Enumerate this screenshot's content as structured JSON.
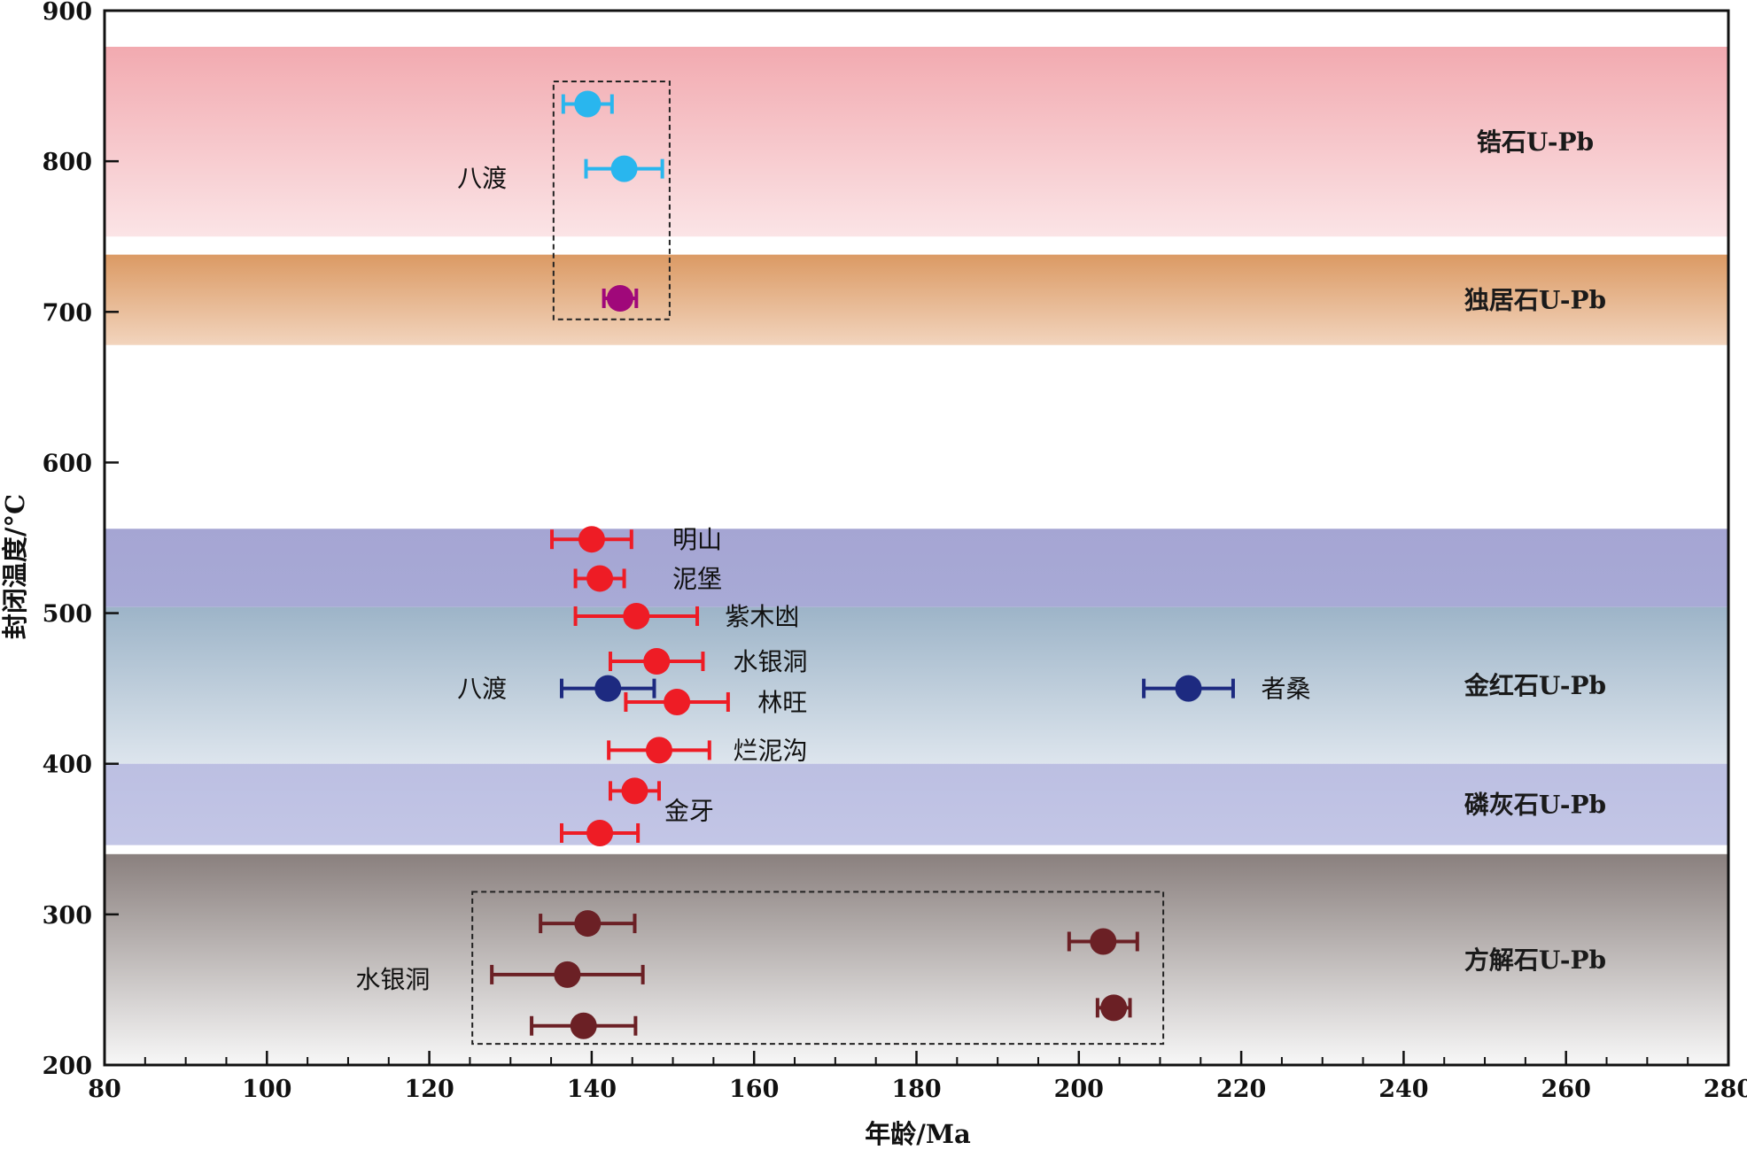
{
  "chart_data": {
    "type": "scatter",
    "title": "",
    "xlabel": "年龄/Ma",
    "ylabel": "封闭温度/°C",
    "xlim": [
      80,
      280
    ],
    "ylim": [
      200,
      900
    ],
    "x_ticks": [
      80,
      100,
      120,
      140,
      160,
      180,
      200,
      220,
      240,
      260,
      280
    ],
    "y_ticks": [
      200,
      300,
      400,
      500,
      600,
      700,
      800,
      900
    ],
    "grid": false,
    "bands": [
      {
        "label": "锆石U-Pb",
        "y_from": 750,
        "y_to": 876,
        "color_top": "#f2aab0",
        "color_bottom": "#fbe4e6"
      },
      {
        "label": "独居石U-Pb",
        "y_from": 678,
        "y_to": 738,
        "color_top": "#db9a64",
        "color_bottom": "#f2d4bd"
      },
      {
        "label": "",
        "y_from": 504,
        "y_to": 556,
        "color_top": "#a5a5d3",
        "color_bottom": "#a8aad6"
      },
      {
        "label": "金红石U-Pb",
        "y_from": 400,
        "y_to": 504,
        "color_top": "#9db4c8",
        "color_bottom": "#dde5ed"
      },
      {
        "label": "磷灰石U-Pb",
        "y_from": 346,
        "y_to": 400,
        "color_top": "#bcbfe2",
        "color_bottom": "#c3c6e6"
      },
      {
        "label": "方解石U-Pb",
        "y_from": 200,
        "y_to": 340,
        "color_top": "#8a807e",
        "color_bottom": "#f7f7f7"
      }
    ],
    "series": [
      {
        "name": "锆石U-Pb",
        "color": "#29b6ee",
        "points": [
          {
            "x": 139.5,
            "y": 838,
            "xerr": 3
          },
          {
            "x": 144,
            "y": 795,
            "xerr": 4.7
          }
        ]
      },
      {
        "name": "独居石U-Pb",
        "color": "#a0087a",
        "points": [
          {
            "x": 143.5,
            "y": 709,
            "xerr": 2
          }
        ]
      },
      {
        "name": "金红石U-Pb（红）",
        "color": "#ee1c25",
        "points": [
          {
            "x": 140,
            "y": 549,
            "xerr": 4.9
          },
          {
            "x": 141,
            "y": 523,
            "xerr": 3
          },
          {
            "x": 145.5,
            "y": 498,
            "xerr": 7.5
          },
          {
            "x": 148,
            "y": 468,
            "xerr": 5.7
          },
          {
            "x": 150.5,
            "y": 441,
            "xerr": 6.3
          },
          {
            "x": 148.3,
            "y": 409,
            "xerr": 6.2
          },
          {
            "x": 145.3,
            "y": 382,
            "xerr": 3
          },
          {
            "x": 141,
            "y": 354,
            "xerr": 4.7
          }
        ]
      },
      {
        "name": "金红石U-Pb（蓝）",
        "color": "#1d2a80",
        "points": [
          {
            "x": 142,
            "y": 450,
            "xerr": 5.7
          },
          {
            "x": 213.5,
            "y": 450,
            "xerr": 5.5
          }
        ]
      },
      {
        "name": "方解石U-Pb",
        "color": "#6b2025",
        "points": [
          {
            "x": 139.5,
            "y": 294,
            "xerr": 5.8
          },
          {
            "x": 137,
            "y": 260,
            "xerr": 9.3
          },
          {
            "x": 139,
            "y": 226,
            "xerr": 6.4
          },
          {
            "x": 203,
            "y": 282,
            "xerr": 4.2
          },
          {
            "x": 204.3,
            "y": 238,
            "xerr": 2
          }
        ]
      }
    ],
    "group_boxes": [
      {
        "x_from": 135.3,
        "x_to": 149.6,
        "y_from": 695,
        "y_to": 853
      },
      {
        "x_from": 125.3,
        "x_to": 210.4,
        "y_from": 214,
        "y_to": 315
      }
    ],
    "annotations": [
      {
        "text": "八渡",
        "x": 126.5,
        "y": 789
      },
      {
        "text": "明山",
        "x": 153,
        "y": 549
      },
      {
        "text": "泥堡",
        "x": 153,
        "y": 523
      },
      {
        "text": "紫木凼",
        "x": 161,
        "y": 498
      },
      {
        "text": "水银洞",
        "x": 162,
        "y": 468
      },
      {
        "text": "八渡",
        "x": 126.5,
        "y": 450
      },
      {
        "text": "林旺",
        "x": 163.5,
        "y": 441
      },
      {
        "text": "者桑",
        "x": 225.5,
        "y": 450
      },
      {
        "text": "烂泥沟",
        "x": 162,
        "y": 409
      },
      {
        "text": "金牙",
        "x": 152,
        "y": 369
      },
      {
        "text": "水银洞",
        "x": 115.5,
        "y": 257
      }
    ]
  }
}
